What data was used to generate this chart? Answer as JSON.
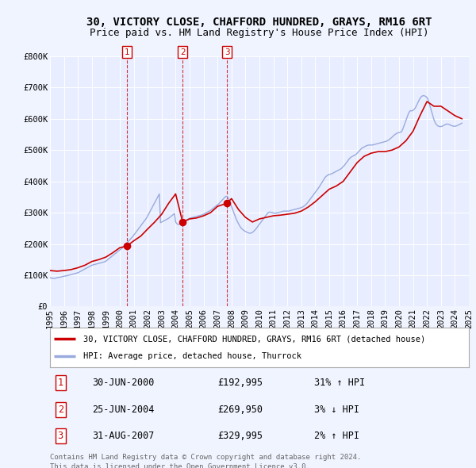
{
  "title": "30, VICTORY CLOSE, CHAFFORD HUNDRED, GRAYS, RM16 6RT",
  "subtitle": "Price paid vs. HM Land Registry's House Price Index (HPI)",
  "ylim": [
    0,
    800000
  ],
  "yticks": [
    0,
    100000,
    200000,
    300000,
    400000,
    500000,
    600000,
    700000,
    800000
  ],
  "ytick_labels": [
    "£0",
    "£100K",
    "£200K",
    "£300K",
    "£400K",
    "£500K",
    "£600K",
    "£700K",
    "£800K"
  ],
  "background_color": "#f0f4ff",
  "plot_bg_color": "#e8eeff",
  "grid_color": "#ffffff",
  "line_color_hpi": "#99aadd",
  "line_color_price": "#cc0000",
  "sale_color": "#cc0000",
  "title_fontsize": 10,
  "subtitle_fontsize": 9,
  "tick_fontsize": 7.5,
  "sales": [
    {
      "num": 1,
      "date_x": 2000.5,
      "price": 192995,
      "label": "30-JUN-2000",
      "price_str": "£192,995",
      "pct": "31%",
      "dir": "↑"
    },
    {
      "num": 2,
      "date_x": 2004.5,
      "price": 269950,
      "label": "25-JUN-2004",
      "price_str": "£269,950",
      "pct": "3%",
      "dir": "↓"
    },
    {
      "num": 3,
      "date_x": 2007.67,
      "price": 329995,
      "label": "31-AUG-2007",
      "price_str": "£329,995",
      "pct": "2%",
      "dir": "↑"
    }
  ],
  "hpi_years": [
    1995.0,
    1995.083,
    1995.167,
    1995.25,
    1995.333,
    1995.417,
    1995.5,
    1995.583,
    1995.667,
    1995.75,
    1995.833,
    1995.917,
    1996.0,
    1996.083,
    1996.167,
    1996.25,
    1996.333,
    1996.417,
    1996.5,
    1996.583,
    1996.667,
    1996.75,
    1996.833,
    1996.917,
    1997.0,
    1997.083,
    1997.167,
    1997.25,
    1997.333,
    1997.417,
    1997.5,
    1997.583,
    1997.667,
    1997.75,
    1997.833,
    1997.917,
    1998.0,
    1998.083,
    1998.167,
    1998.25,
    1998.333,
    1998.417,
    1998.5,
    1998.583,
    1998.667,
    1998.75,
    1998.833,
    1998.917,
    1999.0,
    1999.083,
    1999.167,
    1999.25,
    1999.333,
    1999.417,
    1999.5,
    1999.583,
    1999.667,
    1999.75,
    1999.833,
    1999.917,
    2000.0,
    2000.083,
    2000.167,
    2000.25,
    2000.333,
    2000.417,
    2000.5,
    2000.583,
    2000.667,
    2000.75,
    2000.833,
    2000.917,
    2001.0,
    2001.083,
    2001.167,
    2001.25,
    2001.333,
    2001.417,
    2001.5,
    2001.583,
    2001.667,
    2001.75,
    2001.833,
    2001.917,
    2002.0,
    2002.083,
    2002.167,
    2002.25,
    2002.333,
    2002.417,
    2002.5,
    2002.583,
    2002.667,
    2002.75,
    2002.833,
    2002.917,
    2003.0,
    2003.083,
    2003.167,
    2003.25,
    2003.333,
    2003.417,
    2003.5,
    2003.583,
    2003.667,
    2003.75,
    2003.833,
    2003.917,
    2004.0,
    2004.083,
    2004.167,
    2004.25,
    2004.333,
    2004.417,
    2004.5,
    2004.583,
    2004.667,
    2004.75,
    2004.833,
    2004.917,
    2005.0,
    2005.083,
    2005.167,
    2005.25,
    2005.333,
    2005.417,
    2005.5,
    2005.583,
    2005.667,
    2005.75,
    2005.833,
    2005.917,
    2006.0,
    2006.083,
    2006.167,
    2006.25,
    2006.333,
    2006.417,
    2006.5,
    2006.583,
    2006.667,
    2006.75,
    2006.833,
    2006.917,
    2007.0,
    2007.083,
    2007.167,
    2007.25,
    2007.333,
    2007.417,
    2007.5,
    2007.583,
    2007.667,
    2007.75,
    2007.833,
    2007.917,
    2008.0,
    2008.083,
    2008.167,
    2008.25,
    2008.333,
    2008.417,
    2008.5,
    2008.583,
    2008.667,
    2008.75,
    2008.833,
    2008.917,
    2009.0,
    2009.083,
    2009.167,
    2009.25,
    2009.333,
    2009.417,
    2009.5,
    2009.583,
    2009.667,
    2009.75,
    2009.833,
    2009.917,
    2010.0,
    2010.083,
    2010.167,
    2010.25,
    2010.333,
    2010.417,
    2010.5,
    2010.583,
    2010.667,
    2010.75,
    2010.833,
    2010.917,
    2011.0,
    2011.083,
    2011.167,
    2011.25,
    2011.333,
    2011.417,
    2011.5,
    2011.583,
    2011.667,
    2011.75,
    2011.833,
    2011.917,
    2012.0,
    2012.083,
    2012.167,
    2012.25,
    2012.333,
    2012.417,
    2012.5,
    2012.583,
    2012.667,
    2012.75,
    2012.833,
    2012.917,
    2013.0,
    2013.083,
    2013.167,
    2013.25,
    2013.333,
    2013.417,
    2013.5,
    2013.583,
    2013.667,
    2013.75,
    2013.833,
    2013.917,
    2014.0,
    2014.083,
    2014.167,
    2014.25,
    2014.333,
    2014.417,
    2014.5,
    2014.583,
    2014.667,
    2014.75,
    2014.833,
    2014.917,
    2015.0,
    2015.083,
    2015.167,
    2015.25,
    2015.333,
    2015.417,
    2015.5,
    2015.583,
    2015.667,
    2015.75,
    2015.833,
    2015.917,
    2016.0,
    2016.083,
    2016.167,
    2016.25,
    2016.333,
    2016.417,
    2016.5,
    2016.583,
    2016.667,
    2016.75,
    2016.833,
    2016.917,
    2017.0,
    2017.083,
    2017.167,
    2017.25,
    2017.333,
    2017.417,
    2017.5,
    2017.583,
    2017.667,
    2017.75,
    2017.833,
    2017.917,
    2018.0,
    2018.083,
    2018.167,
    2018.25,
    2018.333,
    2018.417,
    2018.5,
    2018.583,
    2018.667,
    2018.75,
    2018.833,
    2018.917,
    2019.0,
    2019.083,
    2019.167,
    2019.25,
    2019.333,
    2019.417,
    2019.5,
    2019.583,
    2019.667,
    2019.75,
    2019.833,
    2019.917,
    2020.0,
    2020.083,
    2020.167,
    2020.25,
    2020.333,
    2020.417,
    2020.5,
    2020.583,
    2020.667,
    2020.75,
    2020.833,
    2020.917,
    2021.0,
    2021.083,
    2021.167,
    2021.25,
    2021.333,
    2021.417,
    2021.5,
    2021.583,
    2021.667,
    2021.75,
    2021.833,
    2021.917,
    2022.0,
    2022.083,
    2022.167,
    2022.25,
    2022.333,
    2022.417,
    2022.5,
    2022.583,
    2022.667,
    2022.75,
    2022.833,
    2022.917,
    2023.0,
    2023.083,
    2023.167,
    2023.25,
    2023.333,
    2023.417,
    2023.5,
    2023.583,
    2023.667,
    2023.75,
    2023.833,
    2023.917,
    2024.0,
    2024.083,
    2024.167,
    2024.25,
    2024.333,
    2024.417,
    2024.5
  ],
  "hpi_vals": [
    93000,
    91000,
    90500,
    90000,
    90000,
    91000,
    92000,
    93000,
    93500,
    94000,
    95000,
    96000,
    97000,
    97500,
    98000,
    99000,
    100000,
    101000,
    102000,
    103000,
    104000,
    105000,
    106000,
    107000,
    108000,
    110000,
    112000,
    114000,
    116000,
    118000,
    120000,
    122000,
    124000,
    126000,
    128000,
    130000,
    132000,
    133000,
    134000,
    135000,
    136000,
    137000,
    138000,
    139000,
    140000,
    141000,
    142000,
    143000,
    145000,
    148000,
    151000,
    154000,
    157000,
    160000,
    163000,
    166000,
    169000,
    172000,
    175000,
    178000,
    181000,
    184000,
    187000,
    191000,
    195000,
    199000,
    203000,
    207000,
    211000,
    215000,
    219000,
    223000,
    228000,
    233000,
    238000,
    243000,
    248000,
    253000,
    258000,
    263000,
    268000,
    273000,
    278000,
    283000,
    290000,
    297000,
    304000,
    311000,
    318000,
    325000,
    332000,
    339000,
    346000,
    353000,
    360000,
    268000,
    270000,
    272000,
    274000,
    276000,
    278000,
    280000,
    282000,
    285000,
    288000,
    291000,
    294000,
    297000,
    270000,
    265000,
    262000,
    263000,
    265000,
    267000,
    270000,
    272000,
    274000,
    276000,
    278000,
    280000,
    282000,
    283000,
    284000,
    285000,
    286000,
    287000,
    288000,
    289000,
    290000,
    291000,
    292000,
    293000,
    295000,
    297000,
    299000,
    301000,
    303000,
    305000,
    307000,
    310000,
    313000,
    316000,
    319000,
    322000,
    325000,
    328000,
    332000,
    336000,
    340000,
    344000,
    348000,
    352000,
    352000,
    348000,
    340000,
    330000,
    320000,
    310000,
    300000,
    290000,
    280000,
    272000,
    265000,
    258000,
    252000,
    248000,
    245000,
    242000,
    240000,
    238000,
    236000,
    235000,
    234000,
    235000,
    237000,
    240000,
    244000,
    248000,
    253000,
    258000,
    263000,
    268000,
    273000,
    278000,
    283000,
    288000,
    293000,
    298000,
    301000,
    302000,
    301000,
    300000,
    299000,
    298000,
    298000,
    299000,
    300000,
    301000,
    302000,
    303000,
    304000,
    305000,
    305000,
    305000,
    305000,
    305000,
    306000,
    307000,
    308000,
    309000,
    310000,
    311000,
    312000,
    313000,
    314000,
    315000,
    316000,
    318000,
    320000,
    323000,
    326000,
    330000,
    335000,
    340000,
    345000,
    350000,
    355000,
    360000,
    365000,
    370000,
    375000,
    380000,
    386000,
    392000,
    398000,
    404000,
    410000,
    415000,
    418000,
    420000,
    422000,
    423000,
    424000,
    426000,
    428000,
    430000,
    432000,
    434000,
    436000,
    438000,
    440000,
    443000,
    447000,
    451000,
    456000,
    461000,
    466000,
    471000,
    475000,
    478000,
    480000,
    482000,
    484000,
    486000,
    490000,
    494000,
    498000,
    502000,
    506000,
    508000,
    510000,
    512000,
    514000,
    515000,
    516000,
    516000,
    516000,
    516000,
    517000,
    518000,
    519000,
    520000,
    521000,
    522000,
    523000,
    524000,
    525000,
    526000,
    527000,
    528000,
    530000,
    532000,
    535000,
    538000,
    541000,
    545000,
    548000,
    551000,
    553000,
    555000,
    556000,
    557000,
    558000,
    565000,
    575000,
    585000,
    595000,
    606000,
    616000,
    623000,
    626000,
    625000,
    627000,
    630000,
    635000,
    642000,
    650000,
    658000,
    665000,
    670000,
    673000,
    674000,
    673000,
    671000,
    668000,
    660000,
    648000,
    636000,
    623000,
    609000,
    597000,
    588000,
    582000,
    578000,
    576000,
    575000,
    575000,
    576000,
    578000,
    580000,
    582000,
    583000,
    583000,
    582000,
    580000,
    578000,
    577000,
    576000,
    576000,
    577000,
    578000,
    580000,
    582000,
    584000,
    586000
  ],
  "price_years": [
    1995.0,
    1995.5,
    1996.0,
    1996.5,
    1997.0,
    1997.5,
    1998.0,
    1998.5,
    1999.0,
    1999.5,
    2000.0,
    2000.5,
    2001.0,
    2001.5,
    2002.0,
    2002.5,
    2003.0,
    2003.5,
    2004.0,
    2004.5,
    2005.0,
    2005.5,
    2006.0,
    2006.5,
    2007.0,
    2007.67,
    2008.0,
    2008.5,
    2009.0,
    2009.5,
    2010.0,
    2010.5,
    2011.0,
    2011.5,
    2012.0,
    2012.5,
    2013.0,
    2013.5,
    2014.0,
    2014.5,
    2015.0,
    2015.5,
    2016.0,
    2016.5,
    2017.0,
    2017.5,
    2018.0,
    2018.5,
    2019.0,
    2019.5,
    2020.0,
    2020.5,
    2021.0,
    2021.5,
    2022.0,
    2022.5,
    2023.0,
    2023.5,
    2024.0,
    2024.5
  ],
  "price_vals": [
    115000,
    113000,
    115000,
    118000,
    124000,
    132000,
    144000,
    150000,
    158000,
    172000,
    188000,
    192995,
    210000,
    225000,
    248000,
    270000,
    295000,
    330000,
    360000,
    269950,
    280000,
    283000,
    290000,
    300000,
    320000,
    329995,
    345000,
    310000,
    285000,
    270000,
    280000,
    285000,
    290000,
    292000,
    295000,
    298000,
    305000,
    318000,
    335000,
    355000,
    375000,
    385000,
    400000,
    430000,
    460000,
    480000,
    490000,
    495000,
    495000,
    500000,
    510000,
    530000,
    560000,
    610000,
    655000,
    640000,
    640000,
    625000,
    610000,
    600000
  ],
  "footnote1": "Contains HM Land Registry data © Crown copyright and database right 2024.",
  "footnote2": "This data is licensed under the Open Government Licence v3.0.",
  "legend_line1": "30, VICTORY CLOSE, CHAFFORD HUNDRED, GRAYS, RM16 6RT (detached house)",
  "legend_line2": "HPI: Average price, detached house, Thurrock",
  "xlim": [
    1995,
    2025
  ],
  "xticks": [
    1995,
    1996,
    1997,
    1998,
    1999,
    2000,
    2001,
    2002,
    2003,
    2004,
    2005,
    2006,
    2007,
    2008,
    2009,
    2010,
    2011,
    2012,
    2013,
    2014,
    2015,
    2016,
    2017,
    2018,
    2019,
    2020,
    2021,
    2022,
    2023,
    2024,
    2025
  ]
}
